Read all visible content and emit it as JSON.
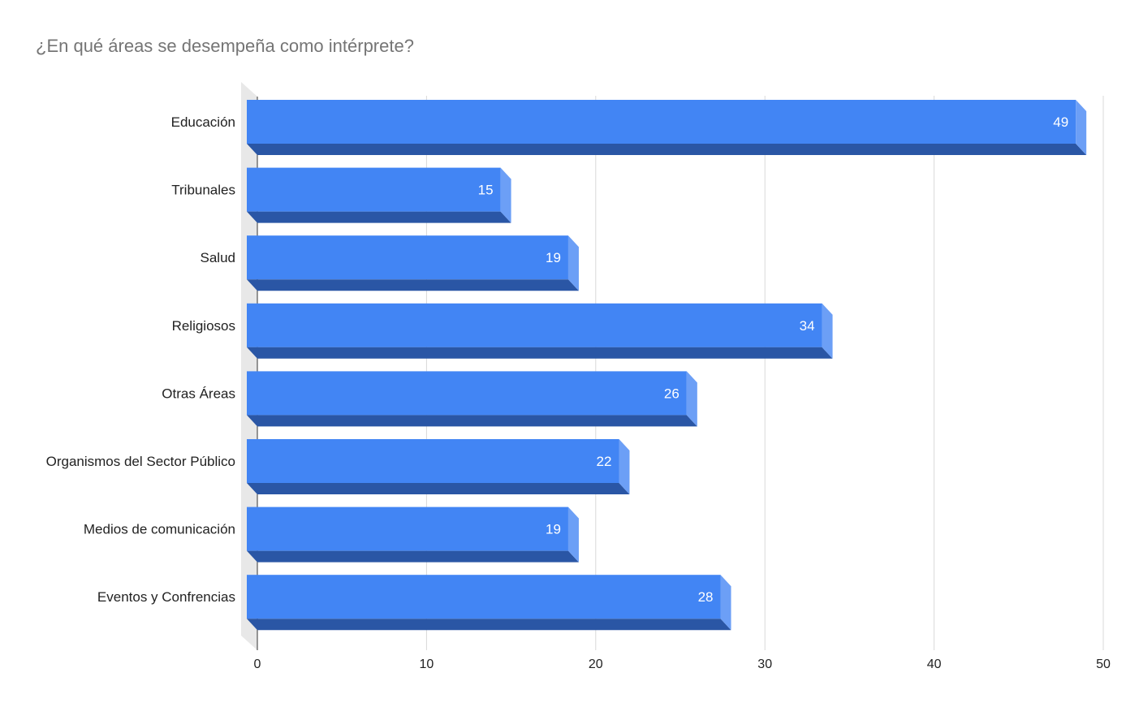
{
  "chart_data": {
    "type": "bar",
    "orientation": "horizontal",
    "style": "3d",
    "title": "¿En qué áreas se desempeña como intérprete?",
    "categories": [
      "Educación",
      "Tribunales",
      "Salud",
      "Religiosos",
      "Otras Áreas",
      "Organismos del Sector Público",
      "Medios de comunicación",
      "Eventos y Confrencias"
    ],
    "values": [
      49,
      15,
      19,
      34,
      26,
      22,
      19,
      28
    ],
    "xlim": [
      0,
      50
    ],
    "xticks": [
      0,
      10,
      20,
      30,
      40,
      50
    ],
    "grid": true,
    "legend": "none",
    "colors": {
      "bar_front": "#4285f4",
      "bar_bottom": "#2a56a5",
      "bar_side": "#6c9ff6",
      "grid": "#d9d9d9",
      "wall": "#e8e8e8"
    }
  }
}
